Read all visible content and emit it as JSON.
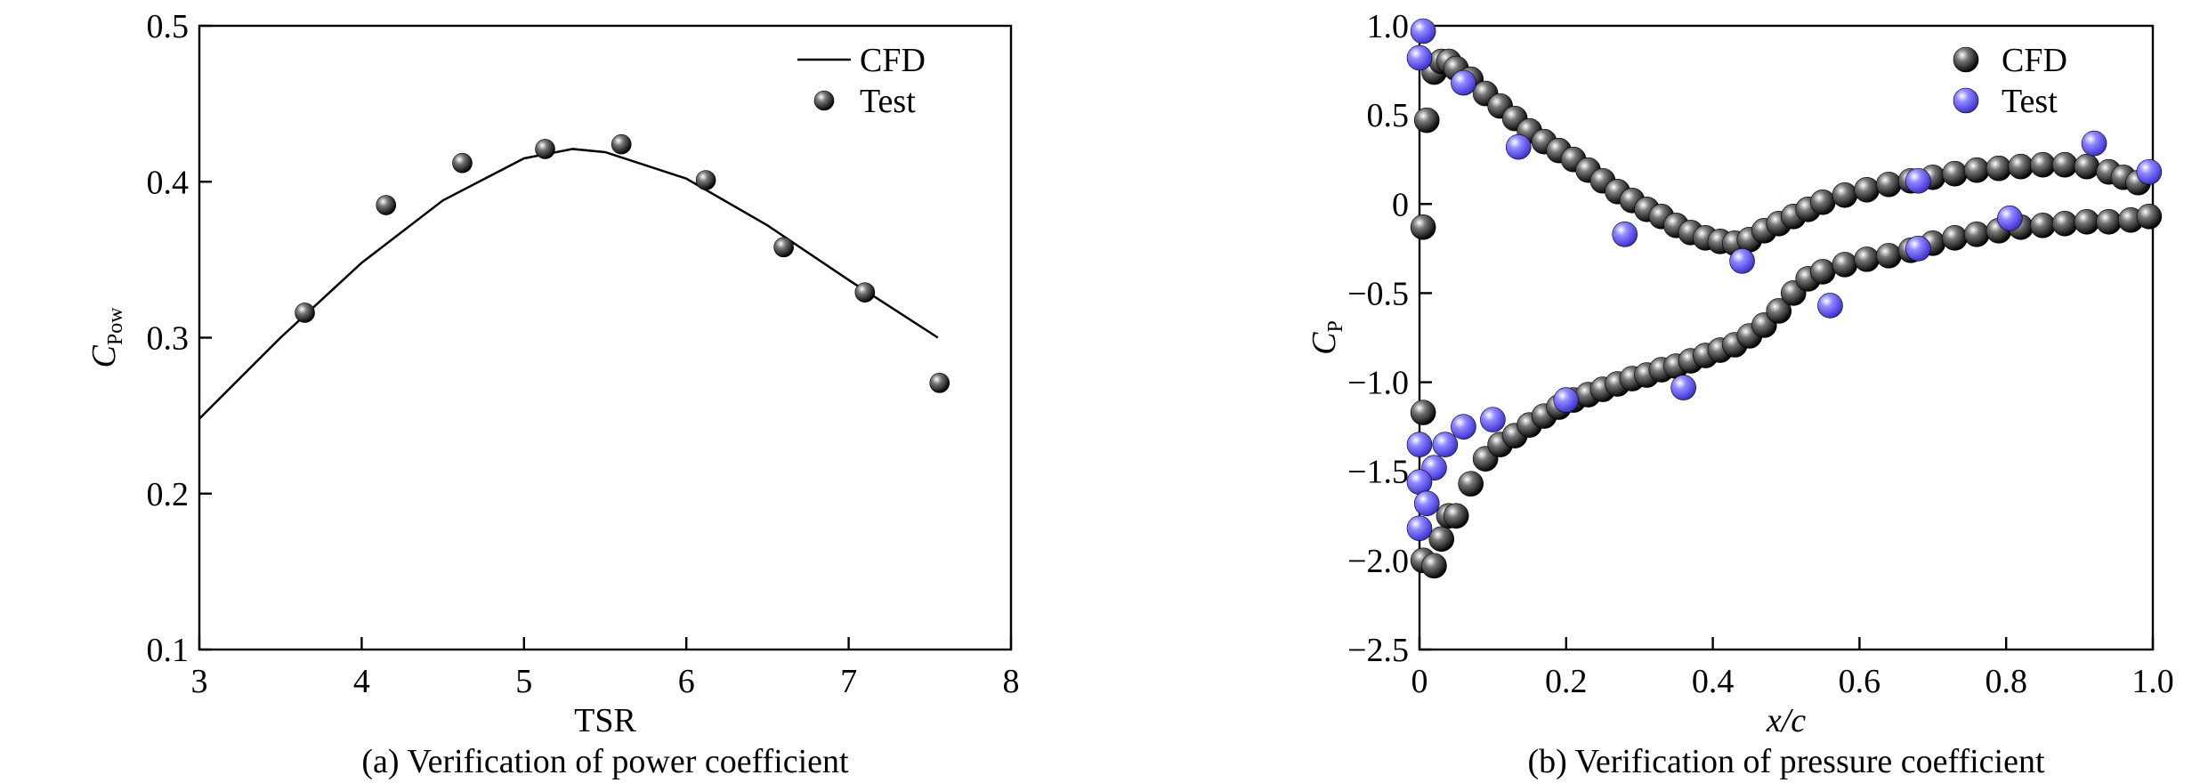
{
  "chart_data": [
    {
      "type": "scatter",
      "caption": "(a) Verification of power coefficient",
      "xlabel": "TSR",
      "ylabel": "C",
      "ylabel_sub": "Pow",
      "xlim": [
        3,
        8
      ],
      "xticks": [
        3,
        4,
        5,
        6,
        7,
        8
      ],
      "ylim": [
        0.1,
        0.5
      ],
      "yticks": [
        0.1,
        0.2,
        0.3,
        0.4,
        0.5
      ],
      "legend": "upper right",
      "series": [
        {
          "name": "CFD",
          "kind": "line",
          "color": "#000000",
          "x": [
            3,
            3.5,
            4,
            4.5,
            5,
            5.3,
            5.5,
            6,
            6.5,
            7,
            7.55
          ],
          "values": [
            0.248,
            0.3,
            0.348,
            0.388,
            0.415,
            0.421,
            0.419,
            0.402,
            0.372,
            0.337,
            0.3
          ]
        },
        {
          "name": "Test",
          "kind": "points",
          "color": "#000000",
          "x": [
            3.65,
            4.15,
            4.62,
            5.13,
            5.6,
            6.12,
            6.6,
            7.1,
            7.56
          ],
          "values": [
            0.316,
            0.385,
            0.412,
            0.421,
            0.424,
            0.401,
            0.358,
            0.329,
            0.271
          ]
        }
      ]
    },
    {
      "type": "scatter",
      "caption": "(b) Verification of pressure coefficient",
      "xlabel": "x/c",
      "ylabel": "C",
      "ylabel_sub": "P",
      "xlim": [
        0,
        1
      ],
      "xticks": [
        0,
        0.2,
        0.4,
        0.6,
        0.8,
        {
          "value": 1,
          "label": "1.0"
        }
      ],
      "ylim": [
        -2.5,
        1
      ],
      "yticks": [
        {
          "value": -2.5,
          "label": "−2.5"
        },
        {
          "value": -2,
          "label": "−2.0"
        },
        {
          "value": -1.5,
          "label": "−1.5"
        },
        {
          "value": -1,
          "label": "−1.0"
        },
        {
          "value": -0.5,
          "label": "−0.5"
        },
        0,
        0.5,
        {
          "value": 1,
          "label": "1.0"
        }
      ],
      "legend": "upper right",
      "series": [
        {
          "name": "CFD",
          "kind": "points",
          "color": "#000000",
          "x": [
            0.005,
            0.01,
            0.02,
            0.03,
            0.04,
            0.05,
            0.07,
            0.09,
            0.11,
            0.13,
            0.15,
            0.17,
            0.19,
            0.21,
            0.23,
            0.25,
            0.27,
            0.29,
            0.31,
            0.33,
            0.35,
            0.37,
            0.39,
            0.41,
            0.43,
            0.45,
            0.47,
            0.49,
            0.51,
            0.53,
            0.55,
            0.58,
            0.61,
            0.64,
            0.67,
            0.7,
            0.73,
            0.76,
            0.79,
            0.82,
            0.85,
            0.88,
            0.91,
            0.94,
            0.96,
            0.98,
            0.005,
            0.005,
            0.02,
            0.03,
            0.04,
            0.05,
            0.07,
            0.09,
            0.11,
            0.13,
            0.15,
            0.17,
            0.19,
            0.21,
            0.23,
            0.25,
            0.27,
            0.29,
            0.31,
            0.33,
            0.35,
            0.37,
            0.39,
            0.41,
            0.43,
            0.45,
            0.47,
            0.49,
            0.51,
            0.53,
            0.55,
            0.58,
            0.61,
            0.64,
            0.67,
            0.7,
            0.73,
            0.76,
            0.79,
            0.82,
            0.85,
            0.88,
            0.91,
            0.94,
            0.97,
            0.995
          ],
          "values": [
            -0.13,
            0.47,
            0.74,
            0.8,
            0.8,
            0.76,
            0.7,
            0.62,
            0.55,
            0.48,
            0.41,
            0.35,
            0.3,
            0.25,
            0.19,
            0.13,
            0.07,
            0.02,
            -0.03,
            -0.07,
            -0.12,
            -0.16,
            -0.19,
            -0.21,
            -0.22,
            -0.2,
            -0.15,
            -0.11,
            -0.07,
            -0.03,
            0.01,
            0.05,
            0.08,
            0.11,
            0.13,
            0.15,
            0.17,
            0.19,
            0.2,
            0.21,
            0.22,
            0.22,
            0.21,
            0.18,
            0.15,
            0.12,
            -1.17,
            -2.0,
            -2.03,
            -1.88,
            -1.75,
            -1.75,
            -1.57,
            -1.43,
            -1.35,
            -1.3,
            -1.24,
            -1.19,
            -1.14,
            -1.1,
            -1.07,
            -1.04,
            -1.01,
            -0.98,
            -0.96,
            -0.93,
            -0.91,
            -0.88,
            -0.85,
            -0.82,
            -0.79,
            -0.74,
            -0.68,
            -0.6,
            -0.5,
            -0.42,
            -0.38,
            -0.34,
            -0.31,
            -0.29,
            -0.26,
            -0.22,
            -0.19,
            -0.17,
            -0.15,
            -0.13,
            -0.12,
            -0.11,
            -0.1,
            -0.1,
            -0.09,
            -0.07
          ]
        },
        {
          "name": "Test",
          "kind": "points",
          "color": "#5a4ff0",
          "x": [
            0.005,
            0.0,
            0.06,
            0.135,
            0.28,
            0.44,
            0.68,
            0.805,
            0.92,
            0.995,
            0.68,
            0.56,
            0.36,
            0.2,
            0.1,
            0.06,
            0.035,
            0.02,
            0.0,
            0.0,
            0.01,
            0.0
          ],
          "values": [
            0.97,
            0.82,
            0.68,
            0.32,
            -0.17,
            -0.32,
            0.13,
            -0.08,
            0.34,
            0.18,
            -0.25,
            -0.57,
            -1.03,
            -1.1,
            -1.21,
            -1.25,
            -1.35,
            -1.48,
            -1.35,
            -1.56,
            -1.68,
            -1.82
          ]
        }
      ]
    }
  ]
}
